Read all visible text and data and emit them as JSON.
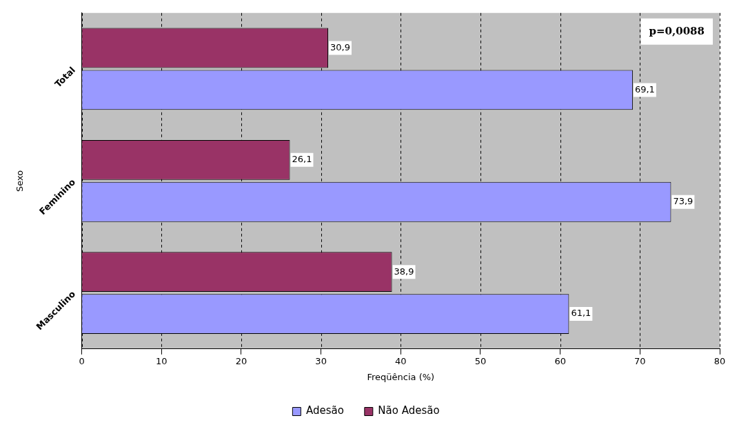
{
  "chart_data": {
    "type": "bar",
    "orientation": "horizontal",
    "xlabel": "Freqüência (%)",
    "ylabel": "Sexo",
    "categories": [
      "Total",
      "Feminino",
      "Masculino"
    ],
    "series": [
      {
        "name": "Adesão",
        "color": "#9999ff",
        "values": [
          69.1,
          73.9,
          61.1
        ],
        "value_labels": [
          "69,1",
          "73,9",
          "61,1"
        ]
      },
      {
        "name": "Não Adesão",
        "color": "#993366",
        "values": [
          30.9,
          26.1,
          38.9
        ],
        "value_labels": [
          "30,9",
          "26,1",
          "38,9"
        ]
      }
    ],
    "xlim": [
      0,
      80
    ],
    "xticks": [
      0,
      10,
      20,
      30,
      40,
      50,
      60,
      70,
      80
    ],
    "grid": "x",
    "legend": "bottom",
    "annotations": [
      "p=0,0088"
    ]
  }
}
